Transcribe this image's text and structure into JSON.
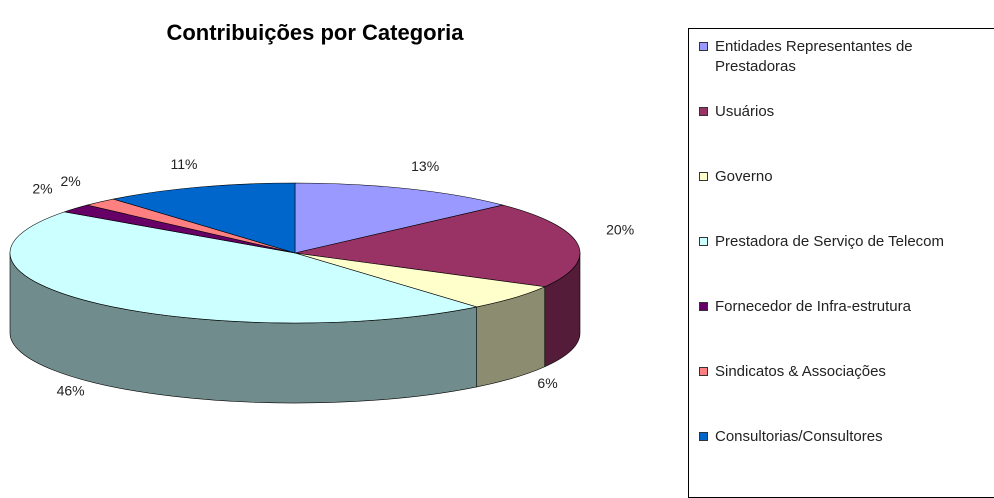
{
  "chart_data": {
    "type": "pie",
    "title": "Contribuições por Categoria",
    "categories": [
      "Entidades Representantes de Prestadoras",
      "Usuários",
      "Governo",
      "Prestadora de Serviço de Telecom",
      "Fornecedor de Infra-estrutura",
      "Sindicatos & Associações",
      "Consultorias/Consultores"
    ],
    "values": [
      13,
      20,
      6,
      46,
      2,
      2,
      11
    ],
    "value_labels": [
      "13%",
      "20%",
      "6%",
      "46%",
      "2%",
      "2%",
      "11%"
    ],
    "colors": [
      "#9999ff",
      "#993366",
      "#ffffcc",
      "#ccffff",
      "#660066",
      "#ff8080",
      "#0066cc"
    ]
  }
}
